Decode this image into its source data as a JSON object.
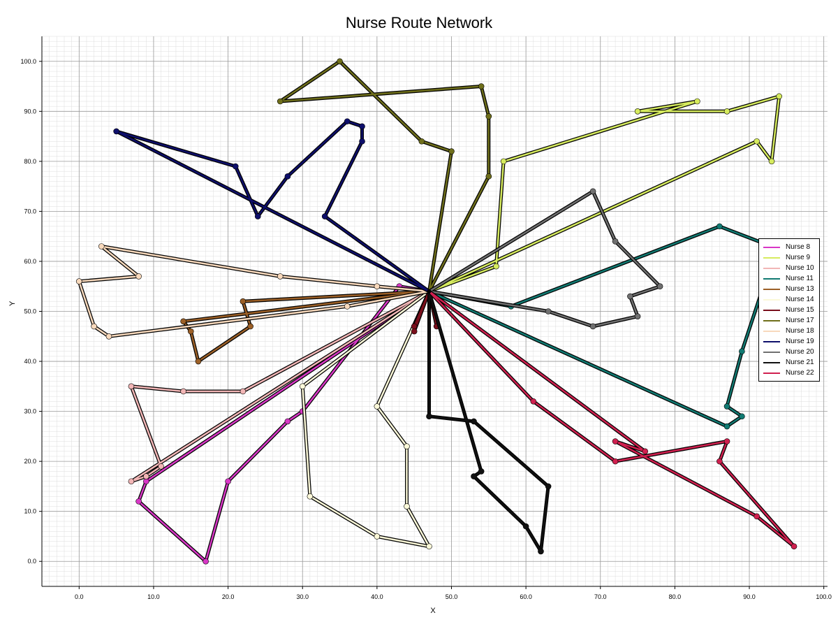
{
  "chart_data": {
    "type": "line",
    "title": "Nurse Route Network",
    "xlabel": "X",
    "ylabel": "Y",
    "xlim": [
      -5,
      100.5
    ],
    "ylim": [
      -5,
      105
    ],
    "x_ticks": [
      "0.0",
      "10.0",
      "20.0",
      "30.0",
      "40.0",
      "50.0",
      "60.0",
      "70.0",
      "80.0",
      "90.0",
      "100.0"
    ],
    "y_ticks": [
      "0.0",
      "10.0",
      "20.0",
      "30.0",
      "40.0",
      "50.0",
      "60.0",
      "70.0",
      "80.0",
      "90.0",
      "100.0"
    ],
    "grid": true,
    "legend_position": "right",
    "depot": [
      47,
      54
    ],
    "series": [
      {
        "name": "Nurse 8",
        "color": "#d837c6",
        "points": [
          [
            47,
            54
          ],
          [
            43,
            55
          ],
          [
            30,
            30
          ],
          [
            28,
            28
          ],
          [
            20,
            16
          ],
          [
            17,
            0
          ],
          [
            8,
            12
          ],
          [
            9,
            16
          ],
          [
            47,
            54
          ]
        ]
      },
      {
        "name": "Nurse 9",
        "color": "#d6eb5e",
        "points": [
          [
            47,
            54
          ],
          [
            56,
            59
          ],
          [
            57,
            80
          ],
          [
            83,
            92
          ],
          [
            75,
            90
          ],
          [
            87,
            90
          ],
          [
            94,
            93
          ],
          [
            93,
            80
          ],
          [
            91,
            84
          ],
          [
            47,
            54
          ]
        ]
      },
      {
        "name": "Nurse 10",
        "color": "#f2b6b6",
        "points": [
          [
            47,
            54
          ],
          [
            22,
            34
          ],
          [
            14,
            34
          ],
          [
            7,
            35
          ],
          [
            11,
            19
          ],
          [
            9,
            17
          ],
          [
            7,
            16
          ],
          [
            47,
            54
          ]
        ]
      },
      {
        "name": "Nurse 11",
        "color": "#117a72",
        "points": [
          [
            47,
            54
          ],
          [
            58,
            51
          ],
          [
            86,
            67
          ],
          [
            93,
            63
          ],
          [
            93,
            60
          ],
          [
            89,
            42
          ],
          [
            87,
            31
          ],
          [
            89,
            29
          ],
          [
            87,
            27
          ],
          [
            47,
            54
          ]
        ]
      },
      {
        "name": "Nurse 13",
        "color": "#9c6027",
        "points": [
          [
            47,
            54
          ],
          [
            22,
            52
          ],
          [
            23,
            47
          ],
          [
            16,
            40
          ],
          [
            15,
            46
          ],
          [
            14,
            48
          ],
          [
            47,
            54
          ]
        ]
      },
      {
        "name": "Nurse 14",
        "color": "#fbf8d8",
        "points": [
          [
            47,
            54
          ],
          [
            40,
            31
          ],
          [
            44,
            23
          ],
          [
            44,
            11
          ],
          [
            47,
            3
          ],
          [
            40,
            5
          ],
          [
            31,
            13
          ],
          [
            30,
            35
          ],
          [
            47,
            54
          ]
        ]
      },
      {
        "name": "Nurse 15",
        "color": "#7a0f1c",
        "points": [
          [
            47,
            54
          ],
          [
            45,
            47
          ],
          [
            45,
            46
          ],
          [
            47,
            54
          ],
          [
            48,
            47
          ],
          [
            47,
            54
          ]
        ]
      },
      {
        "name": "Nurse 17",
        "color": "#6f6f1b",
        "points": [
          [
            47,
            54
          ],
          [
            50,
            82
          ],
          [
            46,
            84
          ],
          [
            35,
            100
          ],
          [
            27,
            92
          ],
          [
            54,
            95
          ],
          [
            55,
            89
          ],
          [
            55,
            77
          ],
          [
            47,
            54
          ]
        ]
      },
      {
        "name": "Nurse 18",
        "color": "#f8d9bc",
        "points": [
          [
            47,
            54
          ],
          [
            40,
            55
          ],
          [
            27,
            57
          ],
          [
            3,
            63
          ],
          [
            8,
            57
          ],
          [
            0,
            56
          ],
          [
            2,
            47
          ],
          [
            4,
            45
          ],
          [
            36,
            51
          ],
          [
            47,
            54
          ]
        ]
      },
      {
        "name": "Nurse 19",
        "color": "#0e0f6b",
        "points": [
          [
            47,
            54
          ],
          [
            5,
            86
          ],
          [
            21,
            79
          ],
          [
            24,
            69
          ],
          [
            28,
            77
          ],
          [
            36,
            88
          ],
          [
            38,
            87
          ],
          [
            38,
            84
          ],
          [
            33,
            69
          ],
          [
            47,
            54
          ]
        ]
      },
      {
        "name": "Nurse 20",
        "color": "#707070",
        "points": [
          [
            47,
            54
          ],
          [
            69,
            74
          ],
          [
            72,
            64
          ],
          [
            78,
            55
          ],
          [
            74,
            53
          ],
          [
            75,
            49
          ],
          [
            69,
            47
          ],
          [
            63,
            50
          ],
          [
            47,
            54
          ]
        ]
      },
      {
        "name": "Nurse 21",
        "color": "#111111",
        "points": [
          [
            47,
            54
          ],
          [
            47,
            29
          ],
          [
            53,
            28
          ],
          [
            63,
            15
          ],
          [
            62,
            2
          ],
          [
            60,
            7
          ],
          [
            53,
            17
          ],
          [
            54,
            18
          ],
          [
            47,
            54
          ]
        ]
      },
      {
        "name": "Nurse 22",
        "color": "#d0204f",
        "points": [
          [
            47,
            54
          ],
          [
            61,
            32
          ],
          [
            72,
            20
          ],
          [
            87,
            24
          ],
          [
            86,
            20
          ],
          [
            96,
            3
          ],
          [
            91,
            9
          ],
          [
            72,
            24
          ],
          [
            76,
            22
          ],
          [
            47,
            54
          ]
        ]
      }
    ]
  }
}
